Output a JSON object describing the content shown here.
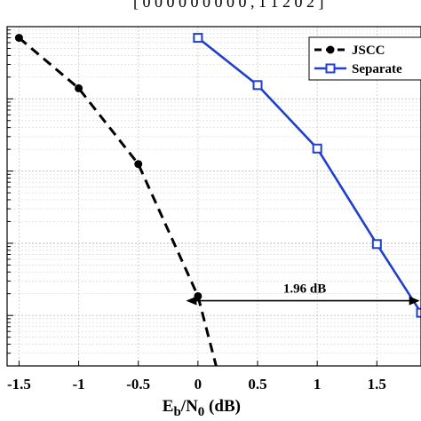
{
  "header_text": "[ 0 0 0 0 0 0 0 0 0 , 1 1 2 0 2 ]",
  "chart_data": {
    "type": "line",
    "xlabel": "E_b/N_0 (dB)",
    "xlabel_parts": {
      "base1": "E",
      "sub1": "b",
      "mid": "/N",
      "sub2": "0",
      "unit": " (dB)"
    },
    "xlim": [
      -1.6,
      1.87
    ],
    "ylim": [
      2e-06,
      0.1
    ],
    "yscale": "log",
    "grid": true,
    "legend_position": "top-right",
    "x_ticks": [
      "-1.5",
      "-1",
      "-0.5",
      "0",
      "0.5",
      "1",
      "1.5"
    ],
    "x_tick_values": [
      -1.5,
      -1,
      -0.5,
      0,
      0.5,
      1,
      1.5
    ],
    "y_decades": [
      1e-05,
      0.0001,
      0.001,
      0.01
    ],
    "series": [
      {
        "name": "JSCC",
        "color": "#000000",
        "line_style": "dashed",
        "marker": "filled-circle",
        "x": [
          -1.5,
          -1.0,
          -0.5,
          0.0,
          0.2
        ],
        "y": [
          0.07,
          0.014,
          0.00125,
          1.85e-05,
          1e-06
        ]
      },
      {
        "name": "Separate",
        "color": "#1f3fcc",
        "line_style": "solid",
        "marker": "square",
        "x": [
          0.0,
          0.5,
          1.0,
          1.5,
          1.87
        ],
        "y": [
          0.07,
          0.0155,
          0.00205,
          9.75e-05,
          1.09e-05
        ]
      }
    ],
    "annotation": {
      "label": "1.96 dB",
      "y": 1.6e-05,
      "x_start": -0.1,
      "x_end": 1.86
    }
  }
}
